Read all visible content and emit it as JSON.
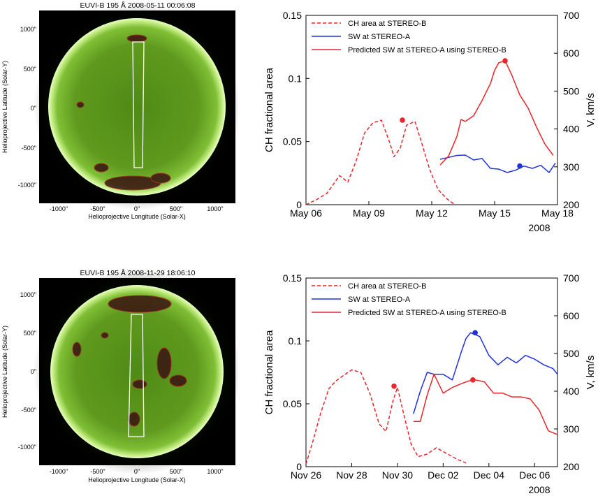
{
  "images": [
    {
      "title": "EUVI-B 195 Å 2008-05-11 00:06:08",
      "xlabel": "Helioprojective Longitude (Solar-X)",
      "ylabel": "Helioprojective Latitude (Solar-Y)",
      "xticks": [
        "-1000\"",
        "-500\"",
        "0\"",
        "500\"",
        "1000\""
      ],
      "yticks": [
        "1000\"",
        "500\"",
        "0\"",
        "-500\"",
        "-1000\""
      ]
    },
    {
      "title": "EUVI-B 195 Å 2008-11-29 18:06:10",
      "xlabel": "Helioprojective Longitude (Solar-X)",
      "ylabel": "Helioprojective Latitude (Solar-Y)",
      "xticks": [
        "-1000\"",
        "-500\"",
        "0\"",
        "500\"",
        "1000\""
      ],
      "yticks": [
        "1000\"",
        "500\"",
        "0\"",
        "-500\"",
        "-1000\""
      ]
    }
  ],
  "colors": {
    "red": "#e8262b",
    "blue": "#2032d8",
    "disk": "#5f9a1e",
    "limb": "#c9f08a"
  },
  "chart_data": [
    {
      "type": "line",
      "ylabel_left": "CH fractional area",
      "ylabel_right": "V, km/s",
      "year": "2008",
      "xticks": [
        "May 06",
        "May 09",
        "May 12",
        "May 15",
        "May 18"
      ],
      "xtick_days": [
        6,
        9,
        12,
        15,
        18
      ],
      "xlim": [
        6,
        18
      ],
      "ylim_left": [
        0,
        0.15
      ],
      "ylim_right": [
        200,
        700
      ],
      "yticks_left": [
        "0",
        "0.05",
        "0.1",
        "0.15"
      ],
      "yticks_right": [
        "200",
        "300",
        "400",
        "500",
        "600",
        "700"
      ],
      "series": [
        {
          "name": "CH area at STEREO-B",
          "axis": "left",
          "style": "dashed",
          "color": "#e8262b",
          "x": [
            6,
            6.5,
            7.0,
            7.3,
            7.6,
            8.0,
            8.4,
            8.8,
            9.2,
            9.6,
            10.0,
            10.2,
            10.5,
            10.8,
            11.2,
            11.5,
            11.9,
            12.3,
            12.7,
            13.1
          ],
          "y": [
            0,
            0.004,
            0.009,
            0.016,
            0.023,
            0.018,
            0.035,
            0.057,
            0.065,
            0.067,
            0.049,
            0.038,
            0.045,
            0.063,
            0.066,
            0.05,
            0.028,
            0.012,
            0.005,
            0
          ],
          "markers": [
            {
              "x": 10.6,
              "y": 0.067
            }
          ]
        },
        {
          "name": "SW at STEREO-A",
          "axis": "right",
          "style": "solid",
          "color": "#2032d8",
          "x": [
            12.4,
            12.8,
            13.2,
            13.6,
            14.0,
            14.4,
            14.8,
            15.2,
            15.6,
            16.0,
            16.4,
            16.8,
            17.2,
            17.6,
            17.9
          ],
          "y": [
            320,
            325,
            330,
            331,
            318,
            322,
            296,
            294,
            285,
            291,
            302,
            296,
            304,
            285,
            310
          ],
          "markers": [
            {
              "x": 16.2,
              "y": 302
            }
          ]
        },
        {
          "name": "Predicted SW at STEREO-A using STEREO-B",
          "axis": "right",
          "style": "solid",
          "color": "#e8262b",
          "x": [
            12.4,
            12.8,
            13.2,
            13.4,
            13.6,
            14.0,
            14.4,
            14.8,
            15.0,
            15.2,
            15.5,
            15.8,
            16.2,
            16.6,
            17.0,
            17.4,
            17.8
          ],
          "y": [
            305,
            328,
            380,
            425,
            420,
            435,
            475,
            520,
            555,
            575,
            580,
            545,
            490,
            455,
            405,
            360,
            330
          ],
          "markers": [
            {
              "x": 15.5,
              "y": 580
            }
          ]
        }
      ]
    },
    {
      "type": "line",
      "ylabel_left": "CH fractional area",
      "ylabel_right": "V, km/s",
      "year": "2008",
      "xticks": [
        "Nov 26",
        "Nov 28",
        "Nov 30",
        "Dec 02",
        "Dec 04",
        "Dec 06"
      ],
      "xtick_days": [
        0,
        2,
        4,
        6,
        8,
        10
      ],
      "xlim": [
        0,
        11
      ],
      "ylim_left": [
        0,
        0.15
      ],
      "ylim_right": [
        200,
        700
      ],
      "yticks_left": [
        "0",
        "0.05",
        "0.1",
        "0.15"
      ],
      "yticks_right": [
        "200",
        "300",
        "400",
        "500",
        "600",
        "700"
      ],
      "series": [
        {
          "name": "CH area at STEREO-B",
          "axis": "left",
          "style": "dashed",
          "color": "#e8262b",
          "x": [
            0,
            0.3,
            0.6,
            1.0,
            1.3,
            1.6,
            2.0,
            2.4,
            2.8,
            3.2,
            3.5,
            3.8,
            4.0,
            4.3,
            4.6,
            4.9,
            5.3,
            5.7,
            6.2,
            6.6,
            7.0
          ],
          "y": [
            0.002,
            0.02,
            0.04,
            0.062,
            0.068,
            0.072,
            0.077,
            0.075,
            0.058,
            0.034,
            0.028,
            0.052,
            0.063,
            0.04,
            0.018,
            0.008,
            0.01,
            0.015,
            0.01,
            0.006,
            0.003
          ],
          "markers": [
            {
              "x": 3.85,
              "y": 0.064
            }
          ]
        },
        {
          "name": "SW at STEREO-A",
          "axis": "right",
          "style": "solid",
          "color": "#2032d8",
          "x": [
            4.7,
            5.0,
            5.3,
            5.6,
            6.0,
            6.4,
            6.8,
            7.0,
            7.2,
            7.6,
            8.0,
            8.4,
            8.8,
            9.2,
            9.6,
            10.0,
            10.4,
            10.8,
            11.0
          ],
          "y": [
            340,
            400,
            450,
            445,
            445,
            430,
            505,
            540,
            555,
            545,
            495,
            470,
            490,
            475,
            495,
            485,
            470,
            460,
            445
          ],
          "markers": [
            {
              "x": 7.4,
              "y": 555
            }
          ]
        },
        {
          "name": "Predicted SW at STEREO-A using STEREO-B",
          "axis": "right",
          "style": "solid",
          "color": "#e8262b",
          "x": [
            4.7,
            5.0,
            5.3,
            5.6,
            6.0,
            6.4,
            6.8,
            7.1,
            7.4,
            7.8,
            8.2,
            8.6,
            9.0,
            9.4,
            9.8,
            10.2,
            10.6,
            11.0
          ],
          "y": [
            320,
            320,
            390,
            445,
            395,
            410,
            420,
            427,
            430,
            425,
            395,
            395,
            385,
            385,
            380,
            350,
            295,
            285
          ],
          "markers": [
            {
              "x": 7.3,
              "y": 430
            }
          ]
        }
      ]
    }
  ]
}
